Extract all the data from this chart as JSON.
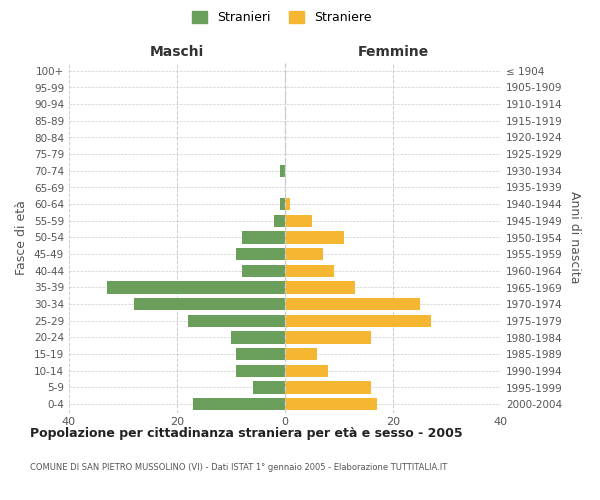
{
  "age_groups": [
    "100+",
    "95-99",
    "90-94",
    "85-89",
    "80-84",
    "75-79",
    "70-74",
    "65-69",
    "60-64",
    "55-59",
    "50-54",
    "45-49",
    "40-44",
    "35-39",
    "30-34",
    "25-29",
    "20-24",
    "15-19",
    "10-14",
    "5-9",
    "0-4"
  ],
  "birth_years": [
    "≤ 1904",
    "1905-1909",
    "1910-1914",
    "1915-1919",
    "1920-1924",
    "1925-1929",
    "1930-1934",
    "1935-1939",
    "1940-1944",
    "1945-1949",
    "1950-1954",
    "1955-1959",
    "1960-1964",
    "1965-1969",
    "1970-1974",
    "1975-1979",
    "1980-1984",
    "1985-1989",
    "1990-1994",
    "1995-1999",
    "2000-2004"
  ],
  "maschi": [
    0,
    0,
    0,
    0,
    0,
    0,
    1,
    0,
    1,
    2,
    8,
    9,
    8,
    33,
    28,
    18,
    10,
    9,
    9,
    6,
    17
  ],
  "femmine": [
    0,
    0,
    0,
    0,
    0,
    0,
    0,
    0,
    1,
    5,
    11,
    7,
    9,
    13,
    25,
    27,
    16,
    6,
    8,
    16,
    17
  ],
  "maschi_color": "#6a9e5b",
  "femmine_color": "#f5b731",
  "title": "Popolazione per cittadinanza straniera per età e sesso - 2005",
  "subtitle": "COMUNE DI SAN PIETRO MUSSOLINO (VI) - Dati ISTAT 1° gennaio 2005 - Elaborazione TUTTITALIA.IT",
  "ylabel_left": "Fasce di età",
  "ylabel_right": "Anni di nascita",
  "xlabel_left": "Maschi",
  "xlabel_right": "Femmine",
  "legend_stranieri": "Stranieri",
  "legend_straniere": "Straniere",
  "xlim": 40,
  "background_color": "#ffffff",
  "grid_color": "#cccccc"
}
